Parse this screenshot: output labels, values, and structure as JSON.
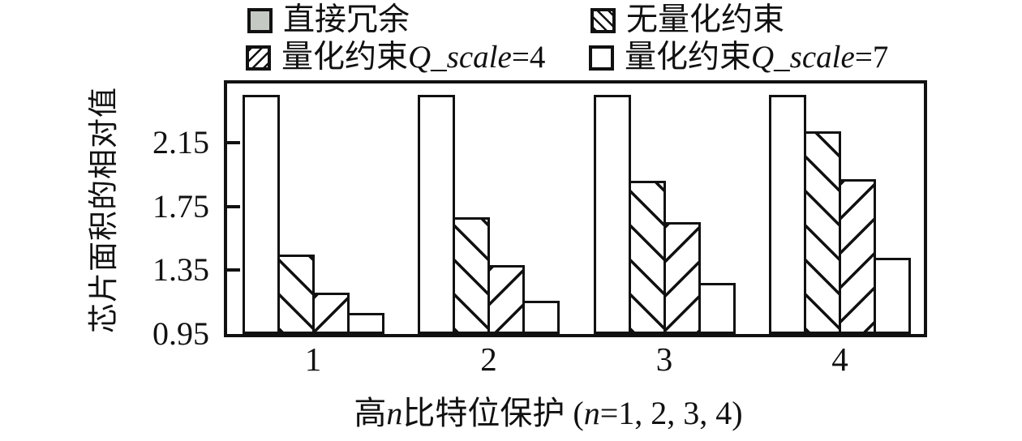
{
  "colors": {
    "bar_gray": "#c5c9c4",
    "ink": "#111111",
    "background": "#ffffff"
  },
  "legend": {
    "items": [
      {
        "swatch": "solid-gray",
        "label_prefix": "直接冗余",
        "label_italic": "",
        "label_suffix": ""
      },
      {
        "swatch": "backslash-hatch",
        "label_prefix": "无量化约束",
        "label_italic": "",
        "label_suffix": ""
      },
      {
        "swatch": "forward-slash-hatch",
        "label_prefix": "量化约束",
        "label_italic": "Q_scale",
        "label_suffix": "=4"
      },
      {
        "swatch": "white",
        "label_prefix": "量化约束",
        "label_italic": "Q_scale",
        "label_suffix": "=7"
      }
    ]
  },
  "xaxis": {
    "label_parts": [
      "高",
      "n",
      "比特位保护 (",
      "n",
      "=1, 2, 3, 4)"
    ]
  },
  "chart_data": {
    "type": "bar",
    "title": "",
    "categories": [
      "1",
      "2",
      "3",
      "4"
    ],
    "series": [
      {
        "name": "直接冗余",
        "fill": "solid-gray",
        "values": [
          2.45,
          2.45,
          2.45,
          2.45
        ]
      },
      {
        "name": "无量化约束",
        "fill": "backslash-hatch",
        "values": [
          1.45,
          1.68,
          1.91,
          2.22
        ]
      },
      {
        "name": "量化约束Q_scale=4",
        "fill": "forward-slash-hatch",
        "values": [
          1.21,
          1.38,
          1.65,
          1.92
        ]
      },
      {
        "name": "量化约束Q_scale=7",
        "fill": "white",
        "values": [
          1.08,
          1.16,
          1.27,
          1.43
        ]
      }
    ],
    "xlabel": "高n比特位保护 (n=1, 2, 3, 4)",
    "ylabel": "芯片面积的相对值",
    "yticks": [
      "0.95",
      "1.35",
      "1.75",
      "2.15"
    ],
    "ylim": [
      0.95,
      2.52
    ],
    "legend_position": "top",
    "grid": false
  }
}
